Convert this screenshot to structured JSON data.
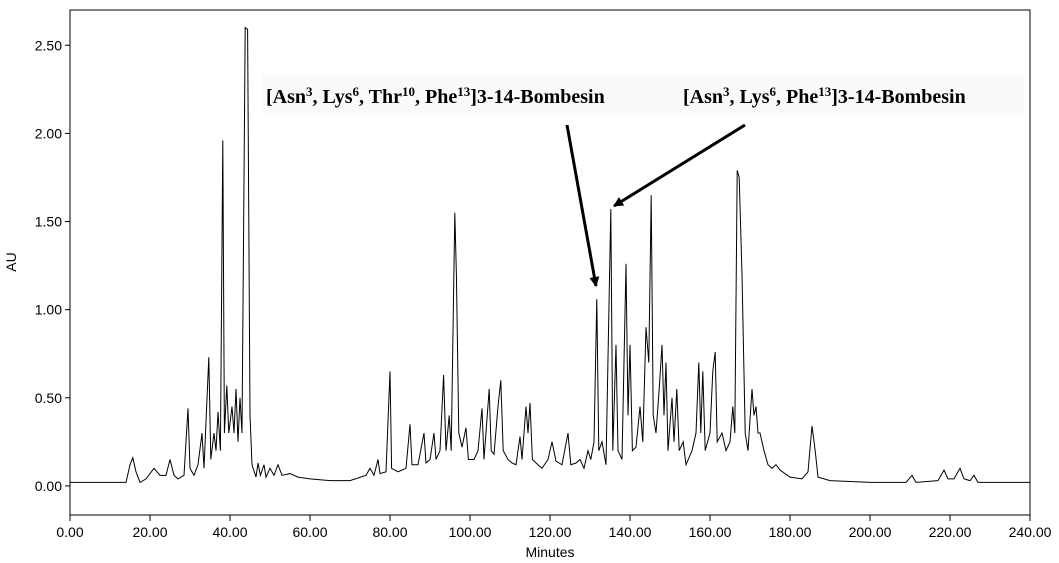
{
  "chart_data": {
    "type": "line",
    "xlabel": "Minutes",
    "ylabel": "AU",
    "xlim": [
      0,
      240
    ],
    "ylim": [
      -0.165,
      2.7
    ],
    "xticks": [
      {
        "value": 0,
        "label": "0.00"
      },
      {
        "value": 20,
        "label": "20.00"
      },
      {
        "value": 40,
        "label": "40.00"
      },
      {
        "value": 60,
        "label": "60.00"
      },
      {
        "value": 80,
        "label": "80.00"
      },
      {
        "value": 100,
        "label": "100.00"
      },
      {
        "value": 120,
        "label": "120.00"
      },
      {
        "value": 140,
        "label": "140.00"
      },
      {
        "value": 160,
        "label": "160.00"
      },
      {
        "value": 180,
        "label": "180.00"
      },
      {
        "value": 200,
        "label": "200.00"
      },
      {
        "value": 220,
        "label": "220.00"
      },
      {
        "value": 240,
        "label": "240.00"
      }
    ],
    "yticks": [
      {
        "value": 0,
        "label": "0.00"
      },
      {
        "value": 0.5,
        "label": "0.50"
      },
      {
        "value": 1,
        "label": "1.00"
      },
      {
        "value": 1.5,
        "label": "1.50"
      },
      {
        "value": 2,
        "label": "2.00"
      },
      {
        "value": 2.5,
        "label": "2.50"
      }
    ],
    "annotations": [
      {
        "parts": [
          {
            "text": "[Asn"
          },
          {
            "text": "3",
            "sup": true
          },
          {
            "text": ", Lys"
          },
          {
            "text": "6",
            "sup": true
          },
          {
            "text": ", Thr"
          },
          {
            "text": "10",
            "sup": true
          },
          {
            "text": ", Phe"
          },
          {
            "text": "13",
            "sup": true
          },
          {
            "text": "]3-14-Bombesin"
          }
        ]
      },
      {
        "parts": [
          {
            "text": "[Asn"
          },
          {
            "text": "3",
            "sup": true
          },
          {
            "text": ", Lys"
          },
          {
            "text": "6",
            "sup": true
          },
          {
            "text": ", Phe"
          },
          {
            "text": "13",
            "sup": true
          },
          {
            "text": "]3-14-Bombesin"
          }
        ]
      }
    ],
    "x": [
      0,
      10,
      14,
      15,
      15.7,
      16.5,
      17.5,
      19,
      21,
      22.5,
      24,
      25,
      26,
      27,
      28.5,
      29.5,
      30,
      31,
      32,
      33,
      33.5,
      34.7,
      35.2,
      36,
      36.5,
      37,
      37.6,
      38.2,
      38.6,
      39.2,
      39.7,
      40.5,
      41,
      41.5,
      42,
      42.5,
      43,
      43.8,
      44.4,
      45,
      45.5,
      46.5,
      47,
      47.6,
      48.5,
      49,
      50,
      51,
      52,
      53,
      55,
      57,
      60,
      65,
      70,
      74,
      75,
      76,
      77,
      77.5,
      79,
      80,
      80.4,
      82,
      84,
      85,
      85.5,
      87,
      88.5,
      89,
      90,
      91,
      91.5,
      92.5,
      93.4,
      94,
      94.8,
      95.3,
      96.2,
      96.6,
      97.2,
      98,
      99,
      99.6,
      101,
      102,
      103,
      103.5,
      104.8,
      105.3,
      106,
      107,
      107.7,
      108.3,
      109.5,
      110.5,
      111.5,
      112.5,
      113,
      114,
      114.5,
      115,
      115.6,
      117,
      118,
      119.5,
      120.5,
      121.5,
      123,
      124.5,
      125.2,
      126.5,
      127.5,
      128.5,
      129.5,
      130.2,
      131,
      131.7,
      132.2,
      133,
      134,
      135.2,
      135.7,
      136.5,
      137,
      138,
      139,
      139.5,
      140,
      140.6,
      141.5,
      142.5,
      143.2,
      144,
      144.7,
      145.3,
      145.8,
      146.5,
      147.3,
      148,
      148.5,
      149,
      149.5,
      150.5,
      151,
      151.7,
      152.3,
      153.3,
      154,
      155.5,
      156.5,
      157.2,
      157.7,
      158.2,
      158.8,
      160,
      160.7,
      161.3,
      161.8,
      163,
      164,
      165,
      165.7,
      166.2,
      166.8,
      167.3,
      168,
      168.8,
      169.5,
      170.5,
      171,
      171.5,
      172,
      172.5,
      173.5,
      174.5,
      175.5,
      176.5,
      177.5,
      180,
      183,
      184.5,
      185.5,
      186.3,
      187,
      190,
      200,
      209,
      210.5,
      211.5,
      217,
      218.5,
      219.5,
      221,
      222.5,
      223.5,
      225,
      226,
      227,
      235,
      240
    ],
    "series": [
      {
        "color": "#000000",
        "values": [
          0.02,
          0.02,
          0.02,
          0.12,
          0.16,
          0.08,
          0.02,
          0.04,
          0.1,
          0.06,
          0.06,
          0.15,
          0.06,
          0.04,
          0.06,
          0.44,
          0.1,
          0.06,
          0.12,
          0.3,
          0.1,
          0.73,
          0.15,
          0.3,
          0.2,
          0.42,
          0.2,
          1.96,
          0.3,
          0.57,
          0.3,
          0.45,
          0.3,
          0.55,
          0.25,
          0.5,
          0.3,
          2.6,
          2.59,
          0.4,
          0.12,
          0.05,
          0.13,
          0.06,
          0.12,
          0.05,
          0.1,
          0.06,
          0.12,
          0.06,
          0.07,
          0.05,
          0.04,
          0.03,
          0.03,
          0.06,
          0.1,
          0.06,
          0.15,
          0.07,
          0.08,
          0.65,
          0.1,
          0.08,
          0.1,
          0.35,
          0.12,
          0.12,
          0.3,
          0.13,
          0.15,
          0.3,
          0.15,
          0.2,
          0.63,
          0.2,
          0.4,
          0.2,
          1.55,
          1.2,
          0.3,
          0.22,
          0.33,
          0.15,
          0.15,
          0.2,
          0.44,
          0.15,
          0.55,
          0.2,
          0.18,
          0.45,
          0.6,
          0.2,
          0.15,
          0.13,
          0.12,
          0.28,
          0.15,
          0.45,
          0.3,
          0.47,
          0.15,
          0.12,
          0.1,
          0.15,
          0.25,
          0.14,
          0.12,
          0.3,
          0.12,
          0.13,
          0.15,
          0.1,
          0.2,
          0.15,
          0.25,
          1.06,
          0.2,
          0.25,
          0.12,
          1.57,
          0.2,
          0.8,
          0.2,
          0.15,
          1.26,
          0.4,
          0.8,
          0.2,
          0.22,
          0.45,
          0.25,
          0.9,
          0.7,
          1.65,
          0.4,
          0.3,
          0.55,
          0.8,
          0.4,
          0.7,
          0.2,
          0.5,
          0.25,
          0.55,
          0.2,
          0.25,
          0.12,
          0.2,
          0.3,
          0.7,
          0.3,
          0.65,
          0.2,
          0.3,
          0.65,
          0.76,
          0.25,
          0.3,
          0.2,
          0.25,
          0.45,
          0.3,
          1.79,
          1.75,
          1.2,
          0.3,
          0.2,
          0.55,
          0.4,
          0.45,
          0.3,
          0.3,
          0.2,
          0.12,
          0.1,
          0.12,
          0.09,
          0.05,
          0.04,
          0.08,
          0.34,
          0.2,
          0.05,
          0.03,
          0.02,
          0.02,
          0.06,
          0.02,
          0.03,
          0.09,
          0.04,
          0.04,
          0.1,
          0.04,
          0.03,
          0.06,
          0.02,
          0.02,
          0.02
        ]
      }
    ]
  }
}
